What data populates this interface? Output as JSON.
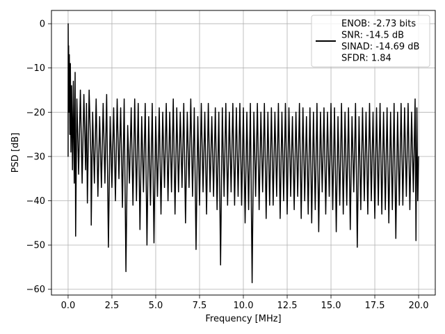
{
  "chart_data": {
    "type": "line",
    "title": "",
    "xlabel": "Frequency [MHz]",
    "ylabel": "PSD [dB]",
    "xlim": [
      -0.95,
      20.95
    ],
    "ylim": [
      -61.3,
      3.0
    ],
    "xticks": [
      0.0,
      2.5,
      5.0,
      7.5,
      10.0,
      12.5,
      15.0,
      17.5,
      20.0
    ],
    "xtick_labels": [
      "0.0",
      "2.5",
      "5.0",
      "7.5",
      "10.0",
      "12.5",
      "15.0",
      "17.5",
      "20.0"
    ],
    "yticks": [
      0,
      -10,
      -20,
      -30,
      -40,
      -50,
      -60
    ],
    "ytick_labels": [
      "0",
      "−10",
      "−20",
      "−30",
      "−40",
      "−50",
      "−60"
    ],
    "grid": true,
    "legend_position": "top-right",
    "legend_lines": [
      "ENOB: -2.73 bits",
      "SNR: -14.5 dB",
      "SINAD: -14.69 dB",
      "SFDR: 1.84"
    ],
    "series": [
      {
        "color": "#000000",
        "points": [
          [
            0.0,
            -30
          ],
          [
            0.005,
            0
          ],
          [
            0.015,
            -12
          ],
          [
            0.03,
            -5
          ],
          [
            0.05,
            -20
          ],
          [
            0.07,
            -7
          ],
          [
            0.1,
            -25
          ],
          [
            0.13,
            -9
          ],
          [
            0.16,
            -29
          ],
          [
            0.2,
            -14
          ],
          [
            0.25,
            -33
          ],
          [
            0.3,
            -13
          ],
          [
            0.35,
            -36
          ],
          [
            0.4,
            -11
          ],
          [
            0.43,
            -48
          ],
          [
            0.5,
            -17
          ],
          [
            0.6,
            -34
          ],
          [
            0.7,
            -15
          ],
          [
            0.8,
            -36
          ],
          [
            0.9,
            -16
          ],
          [
            1.0,
            -33
          ],
          [
            1.05,
            -18
          ],
          [
            1.1,
            -40.5
          ],
          [
            1.2,
            -15
          ],
          [
            1.3,
            -30
          ],
          [
            1.32,
            -45.5
          ],
          [
            1.4,
            -20
          ],
          [
            1.5,
            -36
          ],
          [
            1.6,
            -17
          ],
          [
            1.7,
            -39
          ],
          [
            1.8,
            -21
          ],
          [
            1.9,
            -37
          ],
          [
            2.0,
            -18
          ],
          [
            2.1,
            -36
          ],
          [
            2.2,
            -16
          ],
          [
            2.3,
            -50.5
          ],
          [
            2.4,
            -21
          ],
          [
            2.5,
            -37
          ],
          [
            2.6,
            -19
          ],
          [
            2.7,
            -40
          ],
          [
            2.8,
            -17
          ],
          [
            2.9,
            -35
          ],
          [
            3.0,
            -19
          ],
          [
            3.1,
            -41.5
          ],
          [
            3.2,
            -17
          ],
          [
            3.3,
            -56
          ],
          [
            3.4,
            -23
          ],
          [
            3.5,
            -36
          ],
          [
            3.6,
            -19
          ],
          [
            3.7,
            -41
          ],
          [
            3.8,
            -17
          ],
          [
            3.9,
            -40
          ],
          [
            4.0,
            -18
          ],
          [
            4.1,
            -46.5
          ],
          [
            4.2,
            -21
          ],
          [
            4.3,
            -38
          ],
          [
            4.4,
            -18
          ],
          [
            4.5,
            -50
          ],
          [
            4.6,
            -21
          ],
          [
            4.7,
            -41
          ],
          [
            4.8,
            -18
          ],
          [
            4.9,
            -49.5
          ],
          [
            5.0,
            -21
          ],
          [
            5.1,
            -39
          ],
          [
            5.2,
            -19
          ],
          [
            5.3,
            -43
          ],
          [
            5.4,
            -20
          ],
          [
            5.5,
            -37
          ],
          [
            5.6,
            -18
          ],
          [
            5.7,
            -40
          ],
          [
            5.8,
            -20
          ],
          [
            5.9,
            -38
          ],
          [
            6.0,
            -17
          ],
          [
            6.1,
            -43
          ],
          [
            6.2,
            -19
          ],
          [
            6.3,
            -38
          ],
          [
            6.4,
            -20
          ],
          [
            6.5,
            -37
          ],
          [
            6.6,
            -18
          ],
          [
            6.7,
            -45
          ],
          [
            6.8,
            -20
          ],
          [
            6.9,
            -37
          ],
          [
            7.0,
            -17
          ],
          [
            7.1,
            -39
          ],
          [
            7.2,
            -19
          ],
          [
            7.3,
            -51
          ],
          [
            7.4,
            -21
          ],
          [
            7.5,
            -41
          ],
          [
            7.6,
            -18
          ],
          [
            7.7,
            -38
          ],
          [
            7.8,
            -20
          ],
          [
            7.9,
            -43
          ],
          [
            8.0,
            -18
          ],
          [
            8.1,
            -38
          ],
          [
            8.2,
            -21
          ],
          [
            8.3,
            -39
          ],
          [
            8.4,
            -19
          ],
          [
            8.5,
            -42
          ],
          [
            8.6,
            -20
          ],
          [
            8.7,
            -54.5
          ],
          [
            8.8,
            -19
          ],
          [
            8.9,
            -39
          ],
          [
            9.0,
            -18
          ],
          [
            9.1,
            -41
          ],
          [
            9.2,
            -20
          ],
          [
            9.3,
            -38
          ],
          [
            9.4,
            -18
          ],
          [
            9.5,
            -41
          ],
          [
            9.6,
            -19
          ],
          [
            9.7,
            -39
          ],
          [
            9.8,
            -18
          ],
          [
            9.9,
            -41
          ],
          [
            10.0,
            -19
          ],
          [
            10.1,
            -45
          ],
          [
            10.2,
            -20
          ],
          [
            10.3,
            -42
          ],
          [
            10.4,
            -18
          ],
          [
            10.5,
            -58.5
          ],
          [
            10.6,
            -20
          ],
          [
            10.7,
            -39
          ],
          [
            10.8,
            -18
          ],
          [
            10.9,
            -42
          ],
          [
            11.0,
            -20
          ],
          [
            11.1,
            -38
          ],
          [
            11.2,
            -18
          ],
          [
            11.3,
            -44
          ],
          [
            11.4,
            -20
          ],
          [
            11.5,
            -41
          ],
          [
            11.6,
            -19
          ],
          [
            11.7,
            -41
          ],
          [
            11.8,
            -20
          ],
          [
            11.9,
            -39
          ],
          [
            12.0,
            -18
          ],
          [
            12.1,
            -44
          ],
          [
            12.2,
            -20
          ],
          [
            12.3,
            -40
          ],
          [
            12.4,
            -18
          ],
          [
            12.5,
            -43
          ],
          [
            12.6,
            -19
          ],
          [
            12.7,
            -39
          ],
          [
            12.8,
            -21
          ],
          [
            12.9,
            -42
          ],
          [
            13.0,
            -20
          ],
          [
            13.1,
            -39
          ],
          [
            13.2,
            -18
          ],
          [
            13.3,
            -44
          ],
          [
            13.4,
            -19
          ],
          [
            13.5,
            -40
          ],
          [
            13.6,
            -21
          ],
          [
            13.7,
            -43
          ],
          [
            13.8,
            -19
          ],
          [
            13.9,
            -45
          ],
          [
            14.0,
            -20
          ],
          [
            14.1,
            -42
          ],
          [
            14.2,
            -18
          ],
          [
            14.3,
            -47
          ],
          [
            14.4,
            -20
          ],
          [
            14.5,
            -38
          ],
          [
            14.6,
            -19
          ],
          [
            14.7,
            -43
          ],
          [
            14.8,
            -20
          ],
          [
            14.9,
            -39
          ],
          [
            15.0,
            -18
          ],
          [
            15.1,
            -42
          ],
          [
            15.2,
            -19
          ],
          [
            15.3,
            -47
          ],
          [
            15.4,
            -21
          ],
          [
            15.5,
            -41
          ],
          [
            15.6,
            -18
          ],
          [
            15.7,
            -43
          ],
          [
            15.8,
            -20
          ],
          [
            15.9,
            -41
          ],
          [
            16.0,
            -19
          ],
          [
            16.1,
            -46.5
          ],
          [
            16.2,
            -21
          ],
          [
            16.3,
            -38
          ],
          [
            16.4,
            -18
          ],
          [
            16.5,
            -50.5
          ],
          [
            16.6,
            -21
          ],
          [
            16.7,
            -42
          ],
          [
            16.8,
            -19
          ],
          [
            16.9,
            -40
          ],
          [
            17.0,
            -20
          ],
          [
            17.1,
            -43
          ],
          [
            17.2,
            -18
          ],
          [
            17.3,
            -40
          ],
          [
            17.4,
            -20
          ],
          [
            17.5,
            -44
          ],
          [
            17.6,
            -19
          ],
          [
            17.7,
            -41
          ],
          [
            17.8,
            -18
          ],
          [
            17.9,
            -43
          ],
          [
            18.0,
            -20
          ],
          [
            18.1,
            -42
          ],
          [
            18.2,
            -19
          ],
          [
            18.3,
            -45
          ],
          [
            18.4,
            -20
          ],
          [
            18.5,
            -42
          ],
          [
            18.6,
            -18
          ],
          [
            18.7,
            -48.5
          ],
          [
            18.8,
            -20
          ],
          [
            18.9,
            -41
          ],
          [
            19.0,
            -18
          ],
          [
            19.1,
            -41
          ],
          [
            19.2,
            -19
          ],
          [
            19.3,
            -39
          ],
          [
            19.4,
            -18
          ],
          [
            19.5,
            -42
          ],
          [
            19.6,
            -20
          ],
          [
            19.7,
            -38
          ],
          [
            19.8,
            -17
          ],
          [
            19.85,
            -49
          ],
          [
            19.9,
            -19
          ],
          [
            19.95,
            -40
          ],
          [
            20.0,
            -30
          ]
        ]
      }
    ]
  }
}
